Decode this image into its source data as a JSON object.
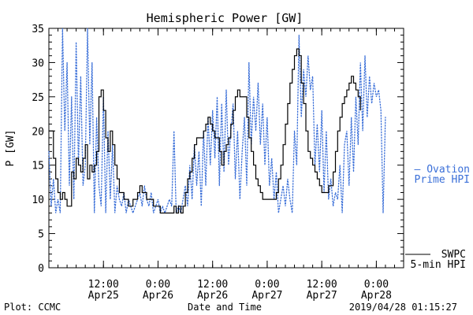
{
  "chart_data": {
    "type": "line",
    "title": "Hemispheric Power [GW]",
    "ylabel": "P [GW]",
    "xlabel": "Date and Time",
    "ylim": [
      0,
      35
    ],
    "yticks": [
      0,
      5,
      10,
      15,
      20,
      25,
      30,
      35
    ],
    "xlim_hours": [
      0,
      78
    ],
    "x_unit": "hours since 2019/04/25 00:00",
    "xticks": [
      {
        "x": 12,
        "line1": "12:00",
        "line2": "Apr25"
      },
      {
        "x": 24,
        "line1": "0:00",
        "line2": "Apr26"
      },
      {
        "x": 36,
        "line1": "12:00",
        "line2": "Apr26"
      },
      {
        "x": 48,
        "line1": "0:00",
        "line2": "Apr27"
      },
      {
        "x": 60,
        "line1": "12:00",
        "line2": "Apr27"
      },
      {
        "x": 72,
        "line1": "0:00",
        "line2": "Apr28"
      }
    ],
    "grid": false,
    "series": [
      {
        "name": "Ovation Prime HPI",
        "legend_line1": "— Ovation",
        "legend_line2": "Prime HPI",
        "color": "#3a6fd8",
        "style": "dotted",
        "points": [
          [
            0,
            17
          ],
          [
            0.5,
            9
          ],
          [
            1,
            13
          ],
          [
            1.5,
            8
          ],
          [
            2,
            10
          ],
          [
            2.5,
            8
          ],
          [
            3,
            35
          ],
          [
            3.5,
            20
          ],
          [
            4,
            30
          ],
          [
            4.5,
            12
          ],
          [
            5,
            25
          ],
          [
            5.5,
            10
          ],
          [
            6,
            33
          ],
          [
            6.5,
            15
          ],
          [
            7,
            28
          ],
          [
            7.5,
            12
          ],
          [
            8,
            15
          ],
          [
            8.5,
            35
          ],
          [
            9,
            18
          ],
          [
            9.5,
            30
          ],
          [
            10,
            8
          ],
          [
            10.5,
            22
          ],
          [
            11,
            12
          ],
          [
            11.5,
            9
          ],
          [
            12,
            25
          ],
          [
            12.5,
            8
          ],
          [
            13,
            20
          ],
          [
            13.5,
            10
          ],
          [
            14,
            18
          ],
          [
            14.5,
            8
          ],
          [
            15,
            12
          ],
          [
            15.5,
            10
          ],
          [
            16,
            9
          ],
          [
            16.5,
            11
          ],
          [
            17,
            8
          ],
          [
            17.5,
            10
          ],
          [
            18,
            9
          ],
          [
            18.5,
            8
          ],
          [
            19,
            9
          ],
          [
            19.5,
            10
          ],
          [
            20,
            11
          ],
          [
            20.5,
            9
          ],
          [
            21,
            12
          ],
          [
            21.5,
            10
          ],
          [
            22,
            9
          ],
          [
            22.5,
            11
          ],
          [
            23,
            8
          ],
          [
            23.5,
            9
          ],
          [
            24,
            10
          ],
          [
            24.5,
            8
          ],
          [
            25,
            9
          ],
          [
            25.5,
            8
          ],
          [
            26,
            9
          ],
          [
            26.5,
            10
          ],
          [
            27,
            9
          ],
          [
            27.5,
            20
          ],
          [
            28,
            8
          ],
          [
            28.5,
            9
          ],
          [
            29,
            8
          ],
          [
            29.5,
            10
          ],
          [
            30,
            12
          ],
          [
            30.5,
            9
          ],
          [
            31,
            15
          ],
          [
            31.5,
            10
          ],
          [
            32,
            18
          ],
          [
            32.5,
            12
          ],
          [
            33,
            17
          ],
          [
            33.5,
            9
          ],
          [
            34,
            20
          ],
          [
            34.5,
            12
          ],
          [
            35,
            22
          ],
          [
            35.5,
            15
          ],
          [
            36,
            23
          ],
          [
            36.5,
            16
          ],
          [
            37,
            25
          ],
          [
            37.5,
            12
          ],
          [
            38,
            24
          ],
          [
            38.5,
            14
          ],
          [
            39,
            26
          ],
          [
            39.5,
            15
          ],
          [
            40,
            20
          ],
          [
            40.5,
            24
          ],
          [
            41,
            13
          ],
          [
            41.5,
            20
          ],
          [
            42,
            10
          ],
          [
            42.5,
            17
          ],
          [
            43,
            22
          ],
          [
            43.5,
            12
          ],
          [
            44,
            30
          ],
          [
            44.5,
            18
          ],
          [
            45,
            25
          ],
          [
            45.5,
            20
          ],
          [
            46,
            27
          ],
          [
            46.5,
            18
          ],
          [
            47,
            24
          ],
          [
            47.5,
            15
          ],
          [
            48,
            22
          ],
          [
            48.5,
            12
          ],
          [
            49,
            16
          ],
          [
            49.5,
            10
          ],
          [
            50,
            14
          ],
          [
            50.5,
            8
          ],
          [
            51,
            10
          ],
          [
            51.5,
            12
          ],
          [
            52,
            9
          ],
          [
            52.5,
            13
          ],
          [
            53,
            10
          ],
          [
            53.5,
            8
          ],
          [
            54,
            20
          ],
          [
            54.5,
            15
          ],
          [
            55,
            34
          ],
          [
            55.5,
            22
          ],
          [
            56,
            29
          ],
          [
            56.5,
            25
          ],
          [
            57,
            31
          ],
          [
            57.5,
            26
          ],
          [
            58,
            28
          ],
          [
            58.5,
            15
          ],
          [
            59,
            21
          ],
          [
            59.5,
            14
          ],
          [
            60,
            23
          ],
          [
            60.5,
            11
          ],
          [
            61,
            20
          ],
          [
            61.5,
            10
          ],
          [
            62,
            13
          ],
          [
            62.5,
            9
          ],
          [
            63,
            11
          ],
          [
            63.5,
            10
          ],
          [
            64,
            15
          ],
          [
            64.5,
            8
          ],
          [
            65,
            18
          ],
          [
            65.5,
            20
          ],
          [
            66,
            12
          ],
          [
            66.5,
            22
          ],
          [
            67,
            14
          ],
          [
            67.5,
            25
          ],
          [
            68,
            18
          ],
          [
            68.5,
            30
          ],
          [
            69,
            20
          ],
          [
            69.5,
            31
          ],
          [
            70,
            22
          ],
          [
            70.5,
            28
          ],
          [
            71,
            24
          ],
          [
            71.5,
            27
          ],
          [
            72,
            25
          ],
          [
            72.5,
            26
          ],
          [
            73,
            23
          ],
          [
            73.5,
            8
          ],
          [
            74,
            22
          ]
        ]
      },
      {
        "name": "SWPC 5-min HPI",
        "legend_line1": "SWPC",
        "legend_line2": "5-min HPI",
        "color": "#000000",
        "style": "solid",
        "points": [
          [
            0,
            20
          ],
          [
            0.5,
            20
          ],
          [
            1,
            16
          ],
          [
            1.5,
            13
          ],
          [
            2,
            11
          ],
          [
            2.5,
            10
          ],
          [
            3,
            11
          ],
          [
            3.5,
            10
          ],
          [
            4,
            9
          ],
          [
            4.5,
            9
          ],
          [
            5,
            14
          ],
          [
            5.5,
            13
          ],
          [
            6,
            16
          ],
          [
            6.5,
            15
          ],
          [
            7,
            14
          ],
          [
            7.5,
            16
          ],
          [
            8,
            18
          ],
          [
            8.5,
            13
          ],
          [
            9,
            15
          ],
          [
            9.5,
            14
          ],
          [
            10,
            15
          ],
          [
            10.5,
            17
          ],
          [
            11,
            25
          ],
          [
            11.5,
            26
          ],
          [
            12,
            23
          ],
          [
            12.5,
            19
          ],
          [
            13,
            17
          ],
          [
            13.5,
            20
          ],
          [
            14,
            18
          ],
          [
            14.5,
            15
          ],
          [
            15,
            13
          ],
          [
            15.5,
            11
          ],
          [
            16,
            11
          ],
          [
            16.5,
            10
          ],
          [
            17,
            10
          ],
          [
            17.5,
            9
          ],
          [
            18,
            9
          ],
          [
            18.5,
            10
          ],
          [
            19,
            10
          ],
          [
            19.5,
            11
          ],
          [
            20,
            12
          ],
          [
            20.5,
            11
          ],
          [
            21,
            11
          ],
          [
            21.5,
            10
          ],
          [
            22,
            10
          ],
          [
            22.5,
            10
          ],
          [
            23,
            9
          ],
          [
            23.5,
            9
          ],
          [
            24,
            9
          ],
          [
            24.5,
            8
          ],
          [
            25,
            8
          ],
          [
            25.5,
            8
          ],
          [
            26,
            8
          ],
          [
            26.5,
            8
          ],
          [
            27,
            8
          ],
          [
            27.5,
            9
          ],
          [
            28,
            8
          ],
          [
            28.5,
            9
          ],
          [
            29,
            8
          ],
          [
            29.5,
            9
          ],
          [
            30,
            11
          ],
          [
            30.5,
            13
          ],
          [
            31,
            14
          ],
          [
            31.5,
            16
          ],
          [
            32,
            18
          ],
          [
            32.5,
            19
          ],
          [
            33,
            19
          ],
          [
            33.5,
            19
          ],
          [
            34,
            20
          ],
          [
            34.5,
            21
          ],
          [
            35,
            22
          ],
          [
            35.5,
            21
          ],
          [
            36,
            20
          ],
          [
            36.5,
            19
          ],
          [
            37,
            19
          ],
          [
            37.5,
            17
          ],
          [
            38,
            15
          ],
          [
            38.5,
            17
          ],
          [
            39,
            18
          ],
          [
            39.5,
            19
          ],
          [
            40,
            21
          ],
          [
            40.5,
            23
          ],
          [
            41,
            25
          ],
          [
            41.5,
            26
          ],
          [
            42,
            25
          ],
          [
            42.5,
            25
          ],
          [
            43,
            25
          ],
          [
            43.5,
            22
          ],
          [
            44,
            19
          ],
          [
            44.5,
            17
          ],
          [
            45,
            15
          ],
          [
            45.5,
            13
          ],
          [
            46,
            12
          ],
          [
            46.5,
            11
          ],
          [
            47,
            10
          ],
          [
            47.5,
            10
          ],
          [
            48,
            10
          ],
          [
            48.5,
            10
          ],
          [
            49,
            10
          ],
          [
            49.5,
            10
          ],
          [
            50,
            11
          ],
          [
            50.5,
            13
          ],
          [
            51,
            15
          ],
          [
            51.5,
            18
          ],
          [
            52,
            21
          ],
          [
            52.5,
            24
          ],
          [
            53,
            27
          ],
          [
            53.5,
            29
          ],
          [
            54,
            31
          ],
          [
            54.5,
            32
          ],
          [
            55,
            31
          ],
          [
            55.5,
            27
          ],
          [
            56,
            24
          ],
          [
            56.5,
            20
          ],
          [
            57,
            17
          ],
          [
            57.5,
            16
          ],
          [
            58,
            15
          ],
          [
            58.5,
            14
          ],
          [
            59,
            13
          ],
          [
            59.5,
            12
          ],
          [
            60,
            11
          ],
          [
            60.5,
            11
          ],
          [
            61,
            11
          ],
          [
            61.5,
            12
          ],
          [
            62,
            12
          ],
          [
            62.5,
            14
          ],
          [
            63,
            17
          ],
          [
            63.5,
            20
          ],
          [
            64,
            22
          ],
          [
            64.5,
            24
          ],
          [
            65,
            25
          ],
          [
            65.5,
            26
          ],
          [
            66,
            27
          ],
          [
            66.5,
            28
          ],
          [
            67,
            27
          ],
          [
            67.5,
            26
          ],
          [
            68,
            25
          ],
          [
            68.5,
            23
          ]
        ]
      }
    ],
    "footer_left": "Plot: CCMC",
    "footer_right": "2019/04/28 01:15:27"
  }
}
